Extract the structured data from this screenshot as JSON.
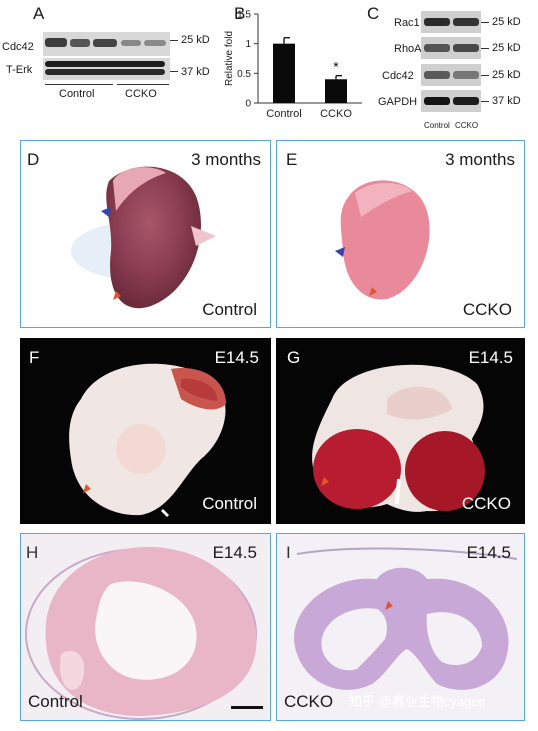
{
  "panelA": {
    "label": "A",
    "row1": "Cdc42",
    "row2": "T-Erk",
    "size1": "25 kD",
    "size2": "37 kD",
    "group1": "Control",
    "group2": "CCKO"
  },
  "panelB": {
    "label": "B",
    "ylabel": "Relative fold",
    "significance": "*"
  },
  "chart_data": {
    "type": "bar",
    "categories": [
      "Control",
      "CCKO"
    ],
    "values": [
      1.0,
      0.4
    ],
    "errors": [
      0.1,
      0.06
    ],
    "title": "",
    "xlabel": "",
    "ylabel": "Relative fold",
    "ylim": [
      0,
      1.5
    ],
    "yticks": [
      "0",
      "0.5",
      "1",
      "1.5"
    ],
    "grid": false
  },
  "panelC": {
    "label": "C",
    "rows": [
      "Rac1",
      "RhoA",
      "Cdc42",
      "GAPDH"
    ],
    "sizes": [
      "25 kD",
      "25 kD",
      "25 kD",
      "37 kD"
    ],
    "group1": "Control",
    "group2": "CCKO"
  },
  "panelD": {
    "label": "D",
    "time": "3 months",
    "genotype": "Control"
  },
  "panelE": {
    "label": "E",
    "time": "3 months",
    "genotype": "CCKO"
  },
  "panelF": {
    "label": "F",
    "time": "E14.5",
    "genotype": "Control"
  },
  "panelG": {
    "label": "G",
    "time": "E14.5",
    "genotype": "CCKO"
  },
  "panelH": {
    "label": "H",
    "time": "E14.5",
    "genotype": "Control"
  },
  "panelI": {
    "label": "I",
    "time": "E14.5",
    "genotype": "CCKO"
  },
  "watermark": "知乎 @赛业生物cyagen"
}
